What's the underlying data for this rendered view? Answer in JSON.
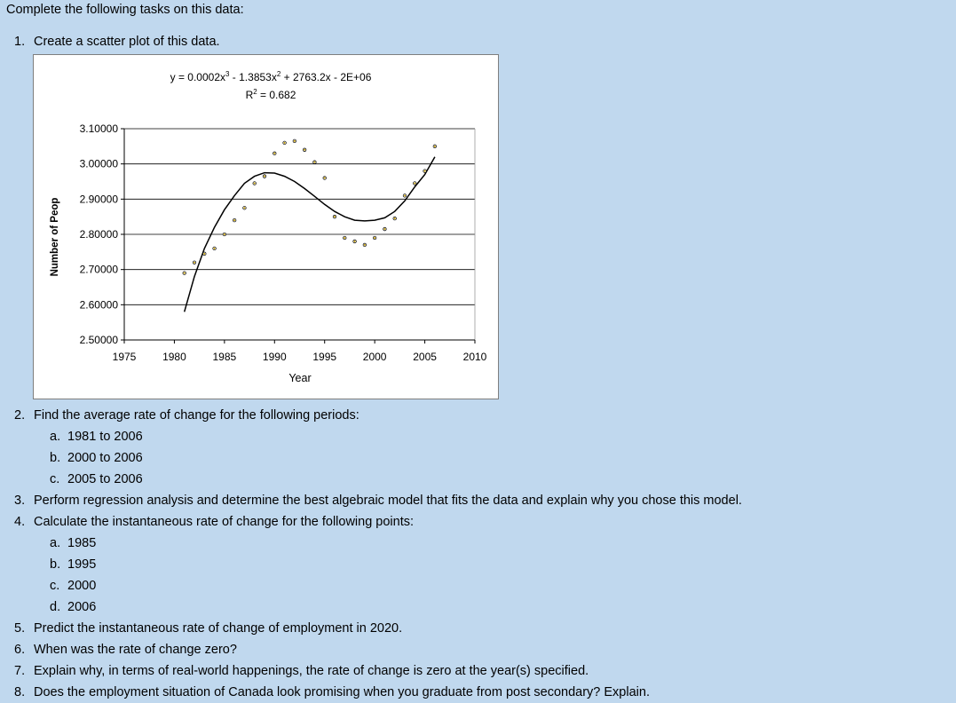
{
  "intro": "Complete the following tasks on this data:",
  "tasks": [
    {
      "num": "1.",
      "text": "Create a scatter plot of this data."
    },
    {
      "num": "2.",
      "text": "Find the average rate of change for the following periods:"
    },
    {
      "num": "3.",
      "text": "Perform regression analysis and determine the best algebraic model that fits the data and explain why you chose this model."
    },
    {
      "num": "4.",
      "text": "Calculate the instantaneous rate of change for the following points:"
    },
    {
      "num": "5.",
      "text": "Predict the instantaneous rate of change of employment in 2020."
    },
    {
      "num": "6.",
      "text": "When was the rate of change zero?"
    },
    {
      "num": "7.",
      "text": "Explain why, in terms of real-world happenings, the rate of change is zero at the year(s) specified."
    },
    {
      "num": "8.",
      "text": "Does the employment situation of Canada look promising when you graduate from post secondary? Explain."
    }
  ],
  "task2_items": [
    {
      "num": "a.",
      "text": "1981 to 2006"
    },
    {
      "num": "b.",
      "text": "2000 to 2006"
    },
    {
      "num": "c.",
      "text": "2005 to 2006"
    }
  ],
  "task4_items": [
    {
      "num": "a.",
      "text": "1985"
    },
    {
      "num": "b.",
      "text": "1995"
    },
    {
      "num": "c.",
      "text": "2000"
    },
    {
      "num": "d.",
      "text": "2006"
    }
  ],
  "chart_data": {
    "type": "scatter",
    "trendline_equation_part1": "y = 0.0002x",
    "trendline_equation_exp1": "3",
    "trendline_equation_part2": " - 1.3853x",
    "trendline_equation_exp2": "2",
    "trendline_equation_part3": " + 2763.2x - 2E+06",
    "r_squared_prefix": "R",
    "r_squared_exp": "2",
    "r_squared_value": " = 0.682",
    "xlabel": "Year",
    "ylabel": "Number of Peop",
    "xlim": [
      1975,
      2010
    ],
    "ylim": [
      2.5,
      3.1
    ],
    "x_ticks": [
      "1975",
      "1980",
      "1985",
      "1990",
      "1995",
      "2000",
      "2005",
      "2010"
    ],
    "y_ticks": [
      "2.50000",
      "2.60000",
      "2.70000",
      "2.80000",
      "2.90000",
      "3.00000",
      "3.10000"
    ],
    "grid": "horizontal",
    "marker_color": "#c8a000",
    "line_color": "#000000",
    "x": [
      1981,
      1982,
      1983,
      1984,
      1985,
      1986,
      1987,
      1988,
      1989,
      1990,
      1991,
      1992,
      1993,
      1994,
      1995,
      1996,
      1997,
      1998,
      1999,
      2000,
      2001,
      2002,
      2003,
      2004,
      2005,
      2006
    ],
    "y": [
      2.69,
      2.72,
      2.745,
      2.76,
      2.8,
      2.84,
      2.875,
      2.945,
      2.965,
      3.03,
      3.06,
      3.065,
      3.04,
      3.005,
      2.96,
      2.85,
      2.79,
      2.78,
      2.77,
      2.79,
      2.815,
      2.845,
      2.91,
      2.945,
      2.98,
      3.05
    ],
    "trendline": [
      {
        "x": 1981,
        "y": 2.58
      },
      {
        "x": 1982,
        "y": 2.68
      },
      {
        "x": 1983,
        "y": 2.76
      },
      {
        "x": 1984,
        "y": 2.82
      },
      {
        "x": 1985,
        "y": 2.87
      },
      {
        "x": 1986,
        "y": 2.91
      },
      {
        "x": 1987,
        "y": 2.945
      },
      {
        "x": 1988,
        "y": 2.965
      },
      {
        "x": 1989,
        "y": 2.975
      },
      {
        "x": 1990,
        "y": 2.974
      },
      {
        "x": 1991,
        "y": 2.965
      },
      {
        "x": 1992,
        "y": 2.95
      },
      {
        "x": 1993,
        "y": 2.93
      },
      {
        "x": 1994,
        "y": 2.908
      },
      {
        "x": 1995,
        "y": 2.885
      },
      {
        "x": 1996,
        "y": 2.865
      },
      {
        "x": 1997,
        "y": 2.85
      },
      {
        "x": 1998,
        "y": 2.84
      },
      {
        "x": 1999,
        "y": 2.838
      },
      {
        "x": 2000,
        "y": 2.84
      },
      {
        "x": 2001,
        "y": 2.847
      },
      {
        "x": 2002,
        "y": 2.865
      },
      {
        "x": 2003,
        "y": 2.895
      },
      {
        "x": 2004,
        "y": 2.935
      },
      {
        "x": 2005,
        "y": 2.97
      },
      {
        "x": 2006,
        "y": 3.02
      }
    ]
  }
}
